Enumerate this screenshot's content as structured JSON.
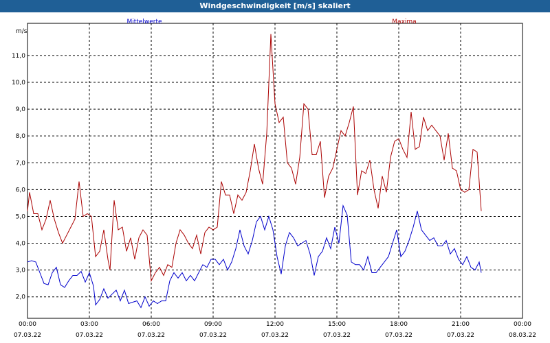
{
  "window": {
    "title": "Windgeschwindigkeit [m/s] skaliert"
  },
  "chart_data": {
    "type": "line",
    "title": "Windgeschwindigkeit [m/s] skaliert",
    "unit_label": "m/s",
    "ylim": [
      1.2,
      12.2
    ],
    "xlim": [
      0,
      24
    ],
    "grid": true,
    "y_ticks": [
      {
        "value": 2.0,
        "label": "2,0"
      },
      {
        "value": 3.0,
        "label": "3,0"
      },
      {
        "value": 4.0,
        "label": "4,0"
      },
      {
        "value": 5.0,
        "label": "5,0"
      },
      {
        "value": 6.0,
        "label": "6,0"
      },
      {
        "value": 7.0,
        "label": "7,0"
      },
      {
        "value": 8.0,
        "label": "8,0"
      },
      {
        "value": 9.0,
        "label": "9,0"
      },
      {
        "value": 10.0,
        "label": "10,0"
      },
      {
        "value": 11.0,
        "label": "11,0"
      }
    ],
    "x_ticks": [
      {
        "hour": 0,
        "time": "00:00",
        "date": "07.03.22"
      },
      {
        "hour": 3,
        "time": "03:00",
        "date": "07.03.22"
      },
      {
        "hour": 6,
        "time": "06:00",
        "date": "07.03.22"
      },
      {
        "hour": 9,
        "time": "09:00",
        "date": "07.03.22"
      },
      {
        "hour": 12,
        "time": "12:00",
        "date": "07.03.22"
      },
      {
        "hour": 15,
        "time": "15:00",
        "date": "07.03.22"
      },
      {
        "hour": 18,
        "time": "18:00",
        "date": "07.03.22"
      },
      {
        "hour": 21,
        "time": "21:00",
        "date": "07.03.22"
      },
      {
        "hour": 24,
        "time": "00:00",
        "date": "08.03.22"
      }
    ],
    "legend": [
      "Mittelwerte",
      "Maxima"
    ],
    "series": [
      {
        "name": "Mittelwerte",
        "color": "#0000cc",
        "points": [
          [
            0.0,
            3.3
          ],
          [
            0.2,
            3.35
          ],
          [
            0.4,
            3.3
          ],
          [
            0.6,
            2.9
          ],
          [
            0.8,
            2.5
          ],
          [
            1.0,
            2.45
          ],
          [
            1.2,
            2.9
          ],
          [
            1.4,
            3.1
          ],
          [
            1.6,
            2.45
          ],
          [
            1.8,
            2.35
          ],
          [
            2.0,
            2.6
          ],
          [
            2.2,
            2.8
          ],
          [
            2.4,
            2.8
          ],
          [
            2.6,
            2.95
          ],
          [
            2.8,
            2.55
          ],
          [
            3.0,
            2.9
          ],
          [
            3.2,
            2.4
          ],
          [
            3.3,
            1.7
          ],
          [
            3.5,
            1.9
          ],
          [
            3.7,
            2.3
          ],
          [
            3.9,
            1.95
          ],
          [
            4.1,
            2.1
          ],
          [
            4.3,
            2.25
          ],
          [
            4.5,
            1.85
          ],
          [
            4.7,
            2.25
          ],
          [
            4.9,
            1.75
          ],
          [
            5.1,
            1.8
          ],
          [
            5.3,
            1.85
          ],
          [
            5.5,
            1.6
          ],
          [
            5.7,
            2.0
          ],
          [
            5.9,
            1.65
          ],
          [
            6.1,
            1.85
          ],
          [
            6.3,
            1.75
          ],
          [
            6.5,
            1.85
          ],
          [
            6.7,
            1.85
          ],
          [
            6.9,
            2.6
          ],
          [
            7.1,
            2.9
          ],
          [
            7.3,
            2.7
          ],
          [
            7.5,
            2.9
          ],
          [
            7.7,
            2.6
          ],
          [
            7.9,
            2.8
          ],
          [
            8.1,
            2.6
          ],
          [
            8.3,
            2.9
          ],
          [
            8.5,
            3.2
          ],
          [
            8.7,
            3.1
          ],
          [
            8.9,
            3.4
          ],
          [
            9.1,
            3.4
          ],
          [
            9.3,
            3.2
          ],
          [
            9.5,
            3.4
          ],
          [
            9.7,
            3.0
          ],
          [
            9.9,
            3.3
          ],
          [
            10.1,
            3.8
          ],
          [
            10.3,
            4.5
          ],
          [
            10.5,
            3.9
          ],
          [
            10.7,
            3.6
          ],
          [
            10.9,
            4.1
          ],
          [
            11.1,
            4.8
          ],
          [
            11.3,
            5.0
          ],
          [
            11.5,
            4.5
          ],
          [
            11.7,
            5.0
          ],
          [
            11.9,
            4.5
          ],
          [
            12.1,
            3.5
          ],
          [
            12.3,
            2.85
          ],
          [
            12.5,
            3.9
          ],
          [
            12.7,
            4.4
          ],
          [
            12.9,
            4.2
          ],
          [
            13.1,
            3.9
          ],
          [
            13.3,
            4.0
          ],
          [
            13.5,
            4.1
          ],
          [
            13.7,
            3.6
          ],
          [
            13.9,
            2.8
          ],
          [
            14.1,
            3.5
          ],
          [
            14.3,
            3.7
          ],
          [
            14.5,
            4.2
          ],
          [
            14.7,
            3.8
          ],
          [
            14.9,
            4.6
          ],
          [
            15.1,
            4.0
          ],
          [
            15.3,
            5.4
          ],
          [
            15.5,
            5.05
          ],
          [
            15.7,
            3.3
          ],
          [
            15.9,
            3.2
          ],
          [
            16.1,
            3.2
          ],
          [
            16.3,
            3.0
          ],
          [
            16.5,
            3.5
          ],
          [
            16.7,
            2.9
          ],
          [
            16.9,
            2.9
          ],
          [
            17.1,
            3.1
          ],
          [
            17.3,
            3.3
          ],
          [
            17.5,
            3.5
          ],
          [
            17.7,
            4.0
          ],
          [
            17.9,
            4.5
          ],
          [
            18.1,
            3.5
          ],
          [
            18.3,
            3.7
          ],
          [
            18.5,
            4.1
          ],
          [
            18.7,
            4.6
          ],
          [
            18.9,
            5.2
          ],
          [
            19.1,
            4.5
          ],
          [
            19.3,
            4.3
          ],
          [
            19.5,
            4.1
          ],
          [
            19.7,
            4.2
          ],
          [
            19.9,
            3.9
          ],
          [
            20.1,
            3.9
          ],
          [
            20.3,
            4.1
          ],
          [
            20.5,
            3.6
          ],
          [
            20.7,
            3.8
          ],
          [
            20.9,
            3.4
          ],
          [
            21.1,
            3.2
          ],
          [
            21.3,
            3.5
          ],
          [
            21.5,
            3.1
          ],
          [
            21.7,
            3.0
          ],
          [
            21.9,
            3.3
          ],
          [
            22.0,
            2.9
          ]
        ]
      },
      {
        "name": "Maxima",
        "color": "#aa0000",
        "points": [
          [
            0.0,
            5.2
          ],
          [
            0.1,
            5.9
          ],
          [
            0.3,
            5.1
          ],
          [
            0.5,
            5.1
          ],
          [
            0.7,
            4.5
          ],
          [
            0.9,
            4.9
          ],
          [
            1.1,
            5.6
          ],
          [
            1.3,
            4.9
          ],
          [
            1.5,
            4.4
          ],
          [
            1.7,
            4.0
          ],
          [
            1.9,
            4.3
          ],
          [
            2.1,
            4.6
          ],
          [
            2.3,
            4.9
          ],
          [
            2.5,
            6.3
          ],
          [
            2.7,
            5.0
          ],
          [
            2.9,
            5.1
          ],
          [
            3.1,
            5.0
          ],
          [
            3.3,
            3.5
          ],
          [
            3.5,
            3.7
          ],
          [
            3.7,
            4.5
          ],
          [
            3.9,
            3.4
          ],
          [
            4.0,
            3.0
          ],
          [
            4.2,
            5.6
          ],
          [
            4.4,
            4.5
          ],
          [
            4.6,
            4.6
          ],
          [
            4.8,
            3.7
          ],
          [
            5.0,
            4.2
          ],
          [
            5.2,
            3.4
          ],
          [
            5.4,
            4.2
          ],
          [
            5.6,
            4.5
          ],
          [
            5.8,
            4.3
          ],
          [
            6.0,
            2.6
          ],
          [
            6.2,
            2.9
          ],
          [
            6.4,
            3.1
          ],
          [
            6.6,
            2.8
          ],
          [
            6.8,
            3.2
          ],
          [
            7.0,
            3.1
          ],
          [
            7.2,
            4.0
          ],
          [
            7.4,
            4.5
          ],
          [
            7.6,
            4.3
          ],
          [
            7.8,
            4.0
          ],
          [
            8.0,
            3.8
          ],
          [
            8.2,
            4.3
          ],
          [
            8.4,
            3.6
          ],
          [
            8.6,
            4.4
          ],
          [
            8.8,
            4.6
          ],
          [
            9.0,
            4.5
          ],
          [
            9.2,
            4.6
          ],
          [
            9.4,
            6.3
          ],
          [
            9.6,
            5.8
          ],
          [
            9.8,
            5.8
          ],
          [
            10.0,
            5.1
          ],
          [
            10.2,
            5.8
          ],
          [
            10.4,
            5.6
          ],
          [
            10.6,
            5.9
          ],
          [
            10.8,
            6.7
          ],
          [
            11.0,
            7.7
          ],
          [
            11.2,
            6.8
          ],
          [
            11.4,
            6.2
          ],
          [
            11.6,
            8.1
          ],
          [
            11.8,
            11.8
          ],
          [
            12.0,
            9.2
          ],
          [
            12.2,
            8.5
          ],
          [
            12.4,
            8.7
          ],
          [
            12.6,
            7.0
          ],
          [
            12.8,
            6.8
          ],
          [
            13.0,
            6.2
          ],
          [
            13.2,
            7.2
          ],
          [
            13.4,
            9.2
          ],
          [
            13.6,
            9.0
          ],
          [
            13.8,
            7.3
          ],
          [
            14.0,
            7.3
          ],
          [
            14.2,
            7.8
          ],
          [
            14.4,
            5.7
          ],
          [
            14.6,
            6.5
          ],
          [
            14.8,
            6.8
          ],
          [
            15.0,
            7.5
          ],
          [
            15.2,
            8.2
          ],
          [
            15.4,
            8.0
          ],
          [
            15.6,
            8.5
          ],
          [
            15.8,
            9.1
          ],
          [
            16.0,
            5.8
          ],
          [
            16.2,
            6.7
          ],
          [
            16.4,
            6.6
          ],
          [
            16.6,
            7.1
          ],
          [
            16.8,
            6.0
          ],
          [
            17.0,
            5.3
          ],
          [
            17.2,
            6.5
          ],
          [
            17.4,
            5.9
          ],
          [
            17.6,
            7.2
          ],
          [
            17.8,
            7.8
          ],
          [
            18.0,
            7.9
          ],
          [
            18.2,
            7.5
          ],
          [
            18.4,
            7.2
          ],
          [
            18.6,
            8.9
          ],
          [
            18.8,
            7.5
          ],
          [
            19.0,
            7.6
          ],
          [
            19.2,
            8.7
          ],
          [
            19.4,
            8.2
          ],
          [
            19.6,
            8.4
          ],
          [
            19.8,
            8.2
          ],
          [
            20.0,
            8.0
          ],
          [
            20.2,
            7.1
          ],
          [
            20.4,
            8.1
          ],
          [
            20.6,
            6.8
          ],
          [
            20.8,
            6.7
          ],
          [
            21.0,
            6.0
          ],
          [
            21.2,
            5.9
          ],
          [
            21.4,
            6.0
          ],
          [
            21.6,
            7.5
          ],
          [
            21.8,
            7.4
          ],
          [
            22.0,
            5.2
          ]
        ]
      }
    ]
  }
}
